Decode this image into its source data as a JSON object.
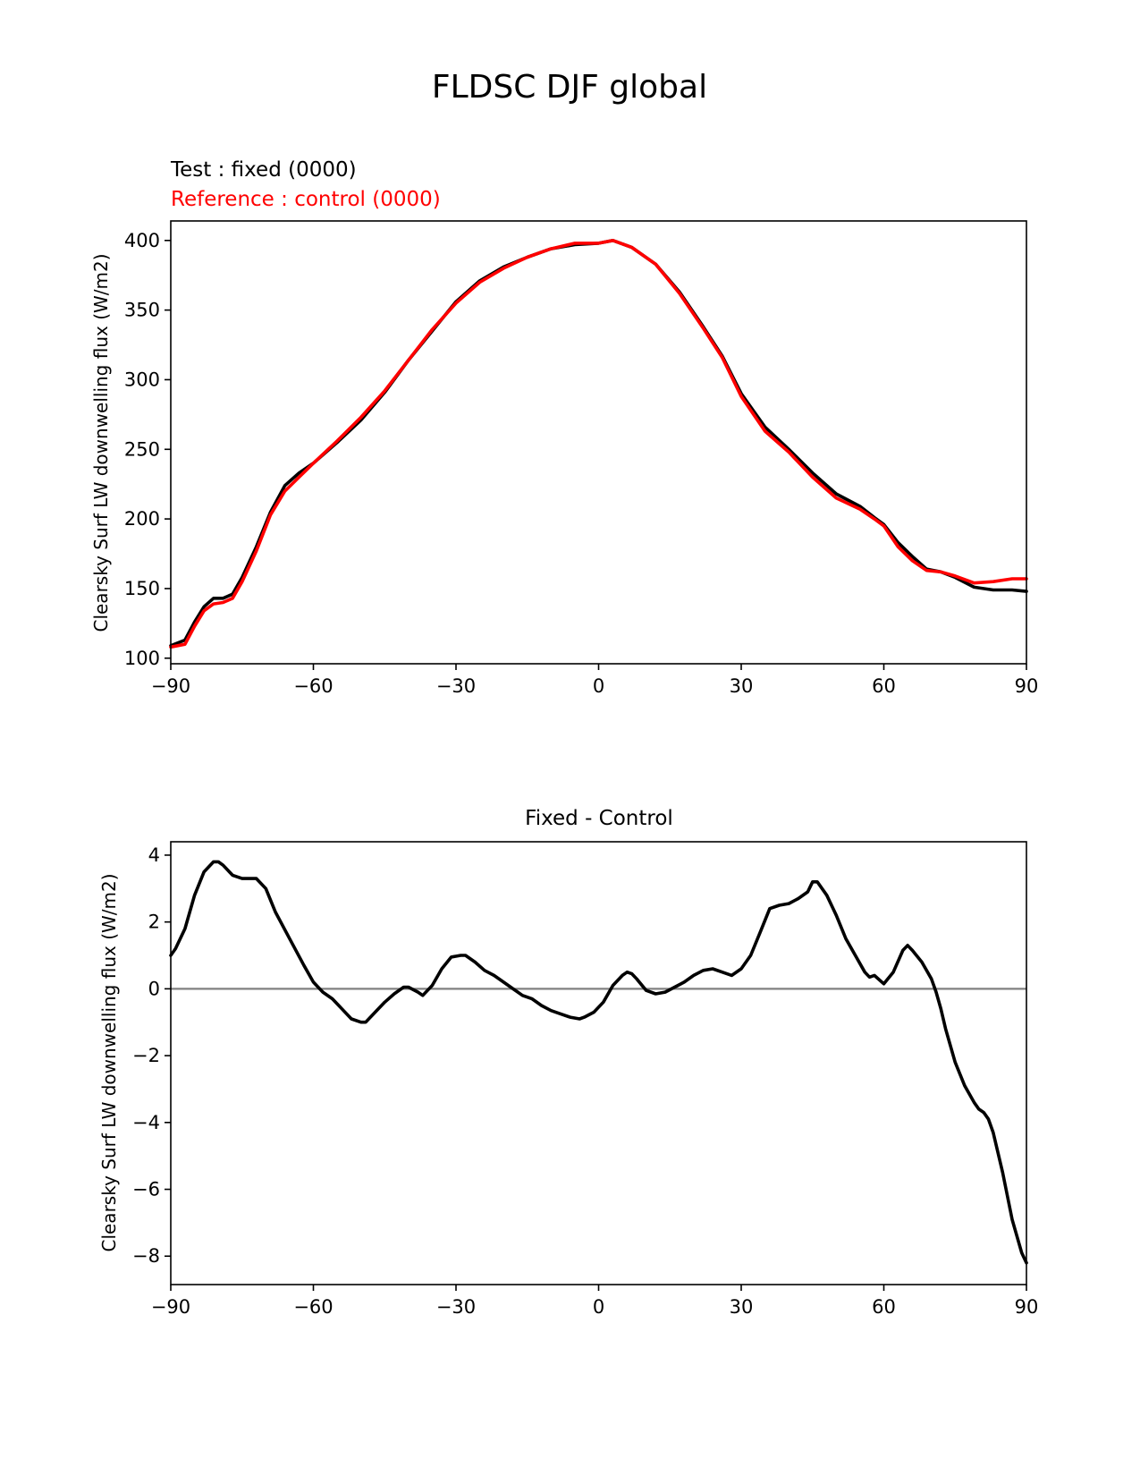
{
  "figure": {
    "suptitle": "FLDSC DJF global"
  },
  "colors": {
    "test": "#000000",
    "reference": "#ff0000",
    "diff": "#000000",
    "zero_line": "#808080"
  },
  "chart_data": [
    {
      "type": "line",
      "panel": "top",
      "title_lines": [
        "Test : fixed (0000)",
        "Reference : control (0000)"
      ],
      "xlabel": "",
      "ylabel": "Clearsky Surf LW downwelling flux (W/m2)",
      "xlim": [
        -90,
        90
      ],
      "ylim": [
        96,
        414
      ],
      "xticks": [
        -90,
        -60,
        -30,
        0,
        30,
        60,
        90
      ],
      "xtick_labels": [
        "−90",
        "−60",
        "−30",
        "0",
        "30",
        "60",
        "90"
      ],
      "yticks": [
        100,
        150,
        200,
        250,
        300,
        350,
        400
      ],
      "ytick_labels": [
        "100",
        "150",
        "200",
        "250",
        "300",
        "350",
        "400"
      ],
      "x": [
        -90,
        -87,
        -85,
        -83,
        -81,
        -79,
        -77,
        -75,
        -72,
        -69,
        -66,
        -63,
        -60,
        -55,
        -50,
        -45,
        -40,
        -35,
        -30,
        -25,
        -20,
        -15,
        -10,
        -5,
        0,
        3,
        7,
        12,
        17,
        22,
        26,
        30,
        35,
        40,
        45,
        50,
        55,
        58,
        60,
        63,
        66,
        69,
        72,
        75,
        79,
        83,
        87,
        90
      ],
      "series": [
        {
          "name": "Test : fixed (0000)",
          "color_key": "test",
          "values": [
            109,
            113,
            126,
            137,
            143,
            143,
            146,
            158,
            180,
            205,
            224,
            233,
            240,
            255,
            271,
            291,
            314,
            335,
            356,
            371,
            381,
            388,
            394,
            397,
            398,
            400,
            395,
            383,
            363,
            338,
            317,
            290,
            266,
            250,
            233,
            218,
            209,
            201,
            196,
            183,
            173,
            164,
            162,
            158,
            151,
            149,
            149,
            148
          ]
        },
        {
          "name": "Reference : control (0000)",
          "color_key": "reference",
          "values": [
            108,
            110,
            123,
            134,
            139,
            140,
            143,
            155,
            177,
            203,
            220,
            230,
            240,
            256,
            273,
            292,
            314,
            336,
            355,
            370,
            380,
            388,
            394,
            398,
            398,
            400,
            395,
            383,
            362,
            337,
            316,
            288,
            263,
            248,
            230,
            215,
            207,
            200,
            195,
            180,
            170,
            163,
            162,
            159,
            154,
            155,
            157,
            157
          ]
        }
      ]
    },
    {
      "type": "line",
      "panel": "bottom",
      "title": "Fixed - Control",
      "xlabel": "",
      "ylabel": "Clearsky Surf LW downwelling flux (W/m2)",
      "xlim": [
        -90,
        90
      ],
      "ylim": [
        -8.85,
        4.4
      ],
      "xticks": [
        -90,
        -60,
        -30,
        0,
        30,
        60,
        90
      ],
      "xtick_labels": [
        "−90",
        "−60",
        "−30",
        "0",
        "30",
        "60",
        "90"
      ],
      "yticks": [
        -8,
        -6,
        -4,
        -2,
        0,
        2,
        4
      ],
      "ytick_labels": [
        "−8",
        "−6",
        "−4",
        "−2",
        "0",
        "2",
        "4"
      ],
      "zero_line": 0,
      "x": [
        -90,
        -89,
        -87,
        -85,
        -83,
        -81,
        -80,
        -79,
        -77,
        -75,
        -73,
        -72,
        -70,
        -68,
        -65,
        -62,
        -60,
        -58,
        -56,
        -54,
        -52,
        -50,
        -49,
        -47,
        -45,
        -43,
        -41,
        -40,
        -38,
        -37,
        -35,
        -33,
        -31,
        -29,
        -28,
        -26,
        -24,
        -22,
        -20,
        -18,
        -16,
        -14,
        -12,
        -10,
        -8,
        -6,
        -4,
        -3,
        -1,
        1,
        3,
        5,
        6,
        7,
        8,
        10,
        12,
        14,
        16,
        18,
        20,
        22,
        24,
        26,
        28,
        30,
        32,
        34,
        36,
        38,
        40,
        42,
        44,
        45,
        46,
        48,
        50,
        52,
        54,
        56,
        57,
        58,
        60,
        62,
        64,
        65,
        66,
        68,
        70,
        71,
        72,
        73,
        75,
        77,
        79,
        80,
        81,
        82,
        83,
        85,
        87,
        89,
        90
      ],
      "series": [
        {
          "name": "Fixed - Control",
          "color_key": "diff",
          "values": [
            1.0,
            1.2,
            1.8,
            2.8,
            3.5,
            3.8,
            3.8,
            3.7,
            3.4,
            3.3,
            3.3,
            3.3,
            3.0,
            2.3,
            1.5,
            0.7,
            0.2,
            -0.1,
            -0.3,
            -0.6,
            -0.9,
            -1.0,
            -1.0,
            -0.7,
            -0.4,
            -0.15,
            0.05,
            0.05,
            -0.1,
            -0.2,
            0.1,
            0.6,
            0.95,
            1.0,
            1.0,
            0.8,
            0.55,
            0.4,
            0.2,
            0.0,
            -0.2,
            -0.3,
            -0.5,
            -0.65,
            -0.75,
            -0.85,
            -0.9,
            -0.85,
            -0.7,
            -0.4,
            0.1,
            0.4,
            0.5,
            0.45,
            0.3,
            -0.05,
            -0.15,
            -0.1,
            0.05,
            0.2,
            0.4,
            0.55,
            0.6,
            0.5,
            0.4,
            0.6,
            1.0,
            1.7,
            2.4,
            2.5,
            2.55,
            2.7,
            2.9,
            3.2,
            3.2,
            2.8,
            2.2,
            1.5,
            1.0,
            0.5,
            0.35,
            0.4,
            0.15,
            0.5,
            1.15,
            1.3,
            1.15,
            0.8,
            0.3,
            -0.1,
            -0.6,
            -1.2,
            -2.2,
            -2.9,
            -3.4,
            -3.6,
            -3.7,
            -3.9,
            -4.3,
            -5.5,
            -6.9,
            -7.9,
            -8.2
          ]
        }
      ]
    }
  ]
}
